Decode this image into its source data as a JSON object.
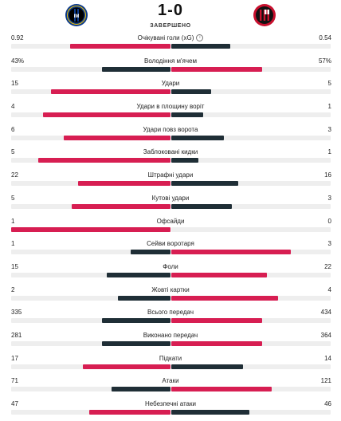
{
  "match": {
    "score": "1-0",
    "status": "ЗАВЕРШЕНО",
    "home_logo_icon": "inter-crest-icon",
    "away_logo_icon": "milan-crest-icon"
  },
  "stats": [
    {
      "name": "Очікувані голи (xG)",
      "home": "0.92",
      "away": "0.54",
      "home_share": 0.63,
      "away_share": 0.37,
      "info": true,
      "home_color": "#d71e52",
      "away_color": "#1f2e36"
    },
    {
      "name": "Володіння м'ячем",
      "home": "43%",
      "away": "57%",
      "home_share": 0.43,
      "away_share": 0.57,
      "home_color": "#1f2e36",
      "away_color": "#d71e52"
    },
    {
      "name": "Удари",
      "home": "15",
      "away": "5",
      "home_share": 0.75,
      "away_share": 0.25,
      "home_color": "#d71e52",
      "away_color": "#1f2e36"
    },
    {
      "name": "Удари в площину воріт",
      "home": "4",
      "away": "1",
      "home_share": 0.8,
      "away_share": 0.2,
      "home_color": "#d71e52",
      "away_color": "#1f2e36"
    },
    {
      "name": "Удари повз ворота",
      "home": "6",
      "away": "3",
      "home_share": 0.67,
      "away_share": 0.33,
      "home_color": "#d71e52",
      "away_color": "#1f2e36"
    },
    {
      "name": "Заблоковані кидки",
      "home": "5",
      "away": "1",
      "home_share": 0.83,
      "away_share": 0.17,
      "home_color": "#d71e52",
      "away_color": "#1f2e36"
    },
    {
      "name": "Штрафні удари",
      "home": "22",
      "away": "16",
      "home_share": 0.58,
      "away_share": 0.42,
      "home_color": "#d71e52",
      "away_color": "#1f2e36"
    },
    {
      "name": "Кутові удари",
      "home": "5",
      "away": "3",
      "home_share": 0.62,
      "away_share": 0.38,
      "home_color": "#d71e52",
      "away_color": "#1f2e36"
    },
    {
      "name": "Офсайди",
      "home": "1",
      "away": "0",
      "home_share": 1.0,
      "away_share": 0.0,
      "home_color": "#d71e52",
      "away_color": "#1f2e36"
    },
    {
      "name": "Сейви воротаря",
      "home": "1",
      "away": "3",
      "home_share": 0.25,
      "away_share": 0.75,
      "home_color": "#1f2e36",
      "away_color": "#d71e52"
    },
    {
      "name": "Фоли",
      "home": "15",
      "away": "22",
      "home_share": 0.4,
      "away_share": 0.6,
      "home_color": "#1f2e36",
      "away_color": "#d71e52"
    },
    {
      "name": "Жовті картки",
      "home": "2",
      "away": "4",
      "home_share": 0.33,
      "away_share": 0.67,
      "home_color": "#1f2e36",
      "away_color": "#d71e52"
    },
    {
      "name": "Всього передач",
      "home": "335",
      "away": "434",
      "home_share": 0.43,
      "away_share": 0.57,
      "home_color": "#1f2e36",
      "away_color": "#d71e52"
    },
    {
      "name": "Виконано передач",
      "home": "281",
      "away": "364",
      "home_share": 0.43,
      "away_share": 0.57,
      "home_color": "#1f2e36",
      "away_color": "#d71e52"
    },
    {
      "name": "Підкати",
      "home": "17",
      "away": "14",
      "home_share": 0.55,
      "away_share": 0.45,
      "home_color": "#d71e52",
      "away_color": "#1f2e36"
    },
    {
      "name": "Атаки",
      "home": "71",
      "away": "121",
      "home_share": 0.37,
      "away_share": 0.63,
      "home_color": "#1f2e36",
      "away_color": "#d71e52"
    },
    {
      "name": "Небезпечні атаки",
      "home": "47",
      "away": "46",
      "home_share": 0.51,
      "away_share": 0.49,
      "home_color": "#d71e52",
      "away_color": "#1f2e36"
    }
  ]
}
